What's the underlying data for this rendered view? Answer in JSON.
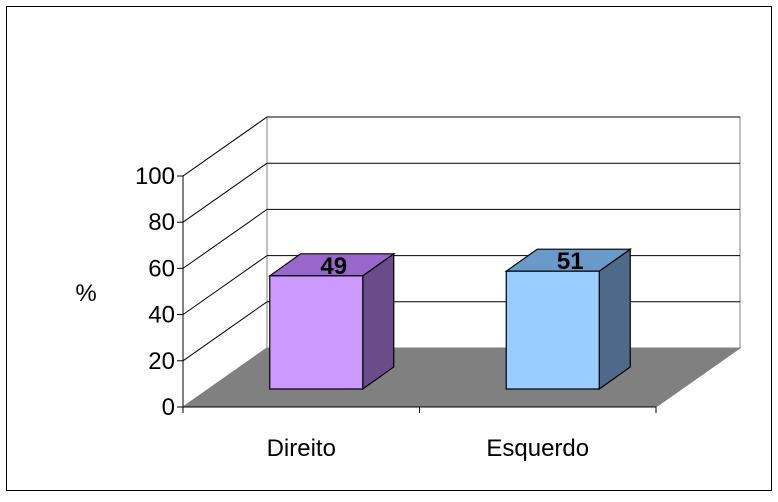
{
  "chart_data": {
    "type": "bar",
    "categories": [
      "Direito",
      "Esquerdo"
    ],
    "values": [
      49,
      51
    ],
    "ylabel": "%",
    "xlabel": "",
    "ylim": [
      0,
      100
    ],
    "yticks": [
      "0",
      "20",
      "40",
      "60",
      "80",
      "100"
    ],
    "grid": true,
    "three_d": true,
    "colors": {
      "bars": [
        {
          "front": "#cc99ff",
          "top": "#9966cc",
          "side": "#6b4c8a"
        },
        {
          "front": "#99ccff",
          "top": "#6a9ac8",
          "side": "#4d6a8a"
        }
      ],
      "floor": "#808080",
      "gridline": "#000000",
      "wall_outline": "#808080"
    }
  }
}
